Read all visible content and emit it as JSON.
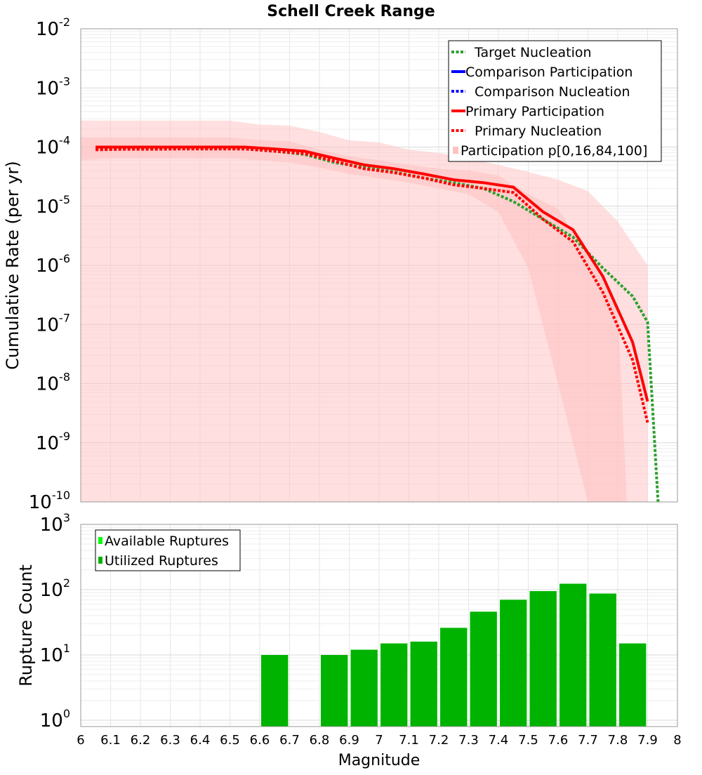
{
  "chart_data": [
    {
      "type": "line",
      "title": "Schell Creek Range",
      "xlabel": "",
      "ylabel": "Cumulative Rate (per yr)",
      "yscale": "log",
      "xlim": [
        6,
        8
      ],
      "ylim": [
        1e-10,
        0.01
      ],
      "y_tick_exponents": [
        -10,
        -9,
        -8,
        -7,
        -6,
        -5,
        -4,
        -3,
        -2
      ],
      "grid": true,
      "legend_position": "top-right",
      "series": [
        {
          "name": "Target Nucleation",
          "style": "dotted",
          "color": "#2ca02c",
          "x": [
            6.05,
            6.15,
            6.25,
            6.35,
            6.45,
            6.55,
            6.65,
            6.75,
            6.85,
            6.95,
            7.05,
            7.15,
            7.25,
            7.35,
            7.45,
            7.55,
            7.65,
            7.75,
            7.85,
            7.9,
            7.935
          ],
          "y": [
            9.5e-05,
            9.5e-05,
            9.5e-05,
            9.5e-05,
            9.5e-05,
            9.3e-05,
            8.5e-05,
            7.5e-05,
            5.5e-05,
            4.5e-05,
            3.8e-05,
            3e-05,
            2.5e-05,
            2e-05,
            1.2e-05,
            6e-06,
            3e-06,
            9e-07,
            3e-07,
            1.1e-07,
            1e-10
          ]
        },
        {
          "name": "Comparison Participation",
          "style": "solid",
          "color": "#0000ff",
          "x": [],
          "y": []
        },
        {
          "name": "Comparison Nucleation",
          "style": "dotted",
          "color": "#0000ff",
          "x": [],
          "y": []
        },
        {
          "name": "Primary Participation",
          "style": "solid",
          "color": "#ff0000",
          "x": [
            6.05,
            6.15,
            6.25,
            6.35,
            6.45,
            6.55,
            6.65,
            6.75,
            6.85,
            6.95,
            7.05,
            7.15,
            7.25,
            7.35,
            7.45,
            7.55,
            7.65,
            7.75,
            7.85,
            7.9
          ],
          "y": [
            0.0001,
            0.0001,
            0.0001,
            0.0001,
            0.0001,
            0.0001,
            9.3e-05,
            8.5e-05,
            6.5e-05,
            5e-05,
            4.3e-05,
            3.5e-05,
            2.8e-05,
            2.5e-05,
            2.1e-05,
            8e-06,
            4e-06,
            6.5e-07,
            5e-08,
            5e-09
          ]
        },
        {
          "name": "Primary Nucleation",
          "style": "dotted",
          "color": "#ff0000",
          "x": [
            6.05,
            6.15,
            6.25,
            6.35,
            6.45,
            6.55,
            6.65,
            6.75,
            6.85,
            6.95,
            7.05,
            7.15,
            7.25,
            7.35,
            7.45,
            7.55,
            7.65,
            7.75,
            7.85,
            7.9
          ],
          "y": [
            9e-05,
            9.2e-05,
            9.2e-05,
            9.3e-05,
            9.3e-05,
            9.3e-05,
            8.5e-05,
            7.8e-05,
            5.8e-05,
            4.3e-05,
            3.7e-05,
            3e-05,
            2.3e-05,
            2e-05,
            1.7e-05,
            6e-06,
            2.5e-06,
            3.5e-07,
            2.5e-08,
            2.2e-09
          ]
        }
      ],
      "bands": [
        {
          "name": "Participation p[0,16,84,100]",
          "color": "#ffc0c0",
          "outer_x": [
            6,
            6.1,
            6.2,
            6.3,
            6.4,
            6.5,
            6.6,
            6.7,
            6.8,
            6.9,
            7,
            7.1,
            7.2,
            7.3,
            7.4,
            7.5,
            7.6,
            7.7,
            7.8,
            7.9
          ],
          "outer_lower": [
            1e-10,
            1e-10,
            1e-10,
            1e-10,
            1e-10,
            1e-10,
            1e-10,
            1e-10,
            1e-10,
            1e-10,
            1e-10,
            1e-10,
            1e-10,
            1e-10,
            1e-10,
            1e-10,
            1e-10,
            1e-10,
            1e-10,
            1e-10
          ],
          "outer_upper": [
            0.00028,
            0.00028,
            0.00028,
            0.00028,
            0.00028,
            0.00028,
            0.00024,
            0.00023,
            0.00018,
            0.00013,
            0.00012,
            9e-05,
            8e-05,
            6.5e-05,
            5e-05,
            3.8e-05,
            2.8e-05,
            1.8e-05,
            5.5e-06,
            1e-06
          ],
          "inner_x": [
            6,
            6.1,
            6.2,
            6.3,
            6.4,
            6.5,
            6.6,
            6.7,
            6.8,
            6.9,
            7,
            7.1,
            7.2,
            7.3,
            7.4,
            7.5,
            7.6,
            7.7,
            7.8,
            7.83
          ],
          "inner_lower": [
            6e-05,
            6.5e-05,
            6.5e-05,
            6.5e-05,
            6.5e-05,
            6.5e-05,
            6e-05,
            5.5e-05,
            4.5e-05,
            3.5e-05,
            3e-05,
            2.5e-05,
            2e-05,
            1.6e-05,
            8e-06,
            9e-07,
            1e-08,
            1e-10,
            1e-10,
            1e-10
          ],
          "inner_upper": [
            0.000145,
            0.000145,
            0.000145,
            0.000145,
            0.000145,
            0.000145,
            0.00013,
            0.000125,
            9e-05,
            7e-05,
            6e-05,
            5e-05,
            4.3e-05,
            4e-05,
            3.3e-05,
            1.6e-05,
            9e-06,
            1.5e-06,
            2e-07,
            1e-10
          ]
        }
      ]
    },
    {
      "type": "bar",
      "title": "",
      "xlabel": "Magnitude",
      "ylabel": "Rupture Count",
      "yscale": "log",
      "xlim": [
        6,
        8
      ],
      "ylim": [
        0.8,
        1000
      ],
      "y_tick_exponents": [
        0,
        1,
        2,
        3
      ],
      "x_ticks": [
        "6",
        "6.1",
        "6.2",
        "6.3",
        "6.4",
        "6.5",
        "6.6",
        "6.7",
        "6.8",
        "6.9",
        "7",
        "7.1",
        "7.2",
        "7.3",
        "7.4",
        "7.5",
        "7.6",
        "7.7",
        "7.8",
        "7.9",
        "8"
      ],
      "grid": true,
      "legend_position": "top-left",
      "bar_width": 0.09,
      "series": [
        {
          "name": "Available Ruptures",
          "color": "#00ff00",
          "x": [
            6.65,
            6.85,
            6.95,
            7.05,
            7.15,
            7.25,
            7.35,
            7.45,
            7.55,
            7.65,
            7.75,
            7.85
          ],
          "values": [
            10,
            10,
            12,
            15,
            16,
            26,
            46,
            70,
            95,
            123,
            87,
            15
          ]
        },
        {
          "name": "Utilized Ruptures",
          "color": "#00b300",
          "x": [
            6.65,
            6.85,
            6.95,
            7.05,
            7.15,
            7.25,
            7.35,
            7.45,
            7.55,
            7.65,
            7.75,
            7.85
          ],
          "values": [
            10,
            10,
            12,
            15,
            16,
            26,
            46,
            70,
            95,
            123,
            87,
            15
          ]
        }
      ]
    }
  ]
}
